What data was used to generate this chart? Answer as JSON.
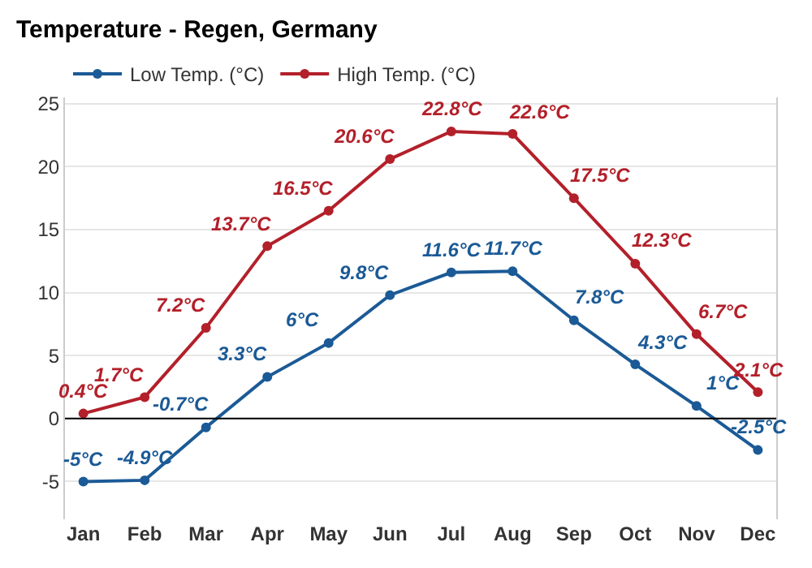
{
  "chart_data": {
    "type": "line",
    "title": "Temperature - Regen, Germany",
    "categories": [
      "Jan",
      "Feb",
      "Mar",
      "Apr",
      "May",
      "Jun",
      "Jul",
      "Aug",
      "Sep",
      "Oct",
      "Nov",
      "Dec"
    ],
    "series": [
      {
        "name": "Low Temp. (°C)",
        "color": "#1b5a96",
        "values": [
          -5,
          -4.9,
          -0.7,
          3.3,
          6,
          9.8,
          11.6,
          11.7,
          7.8,
          4.3,
          1,
          -2.5
        ],
        "value_labels": [
          "-5°C",
          "-4.9°C",
          "-0.7°C",
          "3.3°C",
          "6°C",
          "9.8°C",
          "11.6°C",
          "11.7°C",
          "7.8°C",
          "4.3°C",
          "1°C",
          "-2.5°C"
        ]
      },
      {
        "name": "High Temp. (°C)",
        "color": "#b3202a",
        "values": [
          0.4,
          1.7,
          7.2,
          13.7,
          16.5,
          20.6,
          22.8,
          22.6,
          17.5,
          12.3,
          6.7,
          2.1
        ],
        "value_labels": [
          "0.4°C",
          "1.7°C",
          "7.2°C",
          "13.7°C",
          "16.5°C",
          "20.6°C",
          "22.8°C",
          "22.6°C",
          "17.5°C",
          "12.3°C",
          "6.7°C",
          "2.1°C"
        ]
      }
    ],
    "ylim": [
      -8,
      25.5
    ],
    "yticks": [
      -5,
      0,
      5,
      10,
      15,
      20,
      25
    ],
    "grid": "y",
    "legend": "top left",
    "marker": "circle",
    "line_style": "solid",
    "ref_lines": [
      {
        "axis": "y",
        "value": 0,
        "color": "#000000"
      }
    ]
  }
}
